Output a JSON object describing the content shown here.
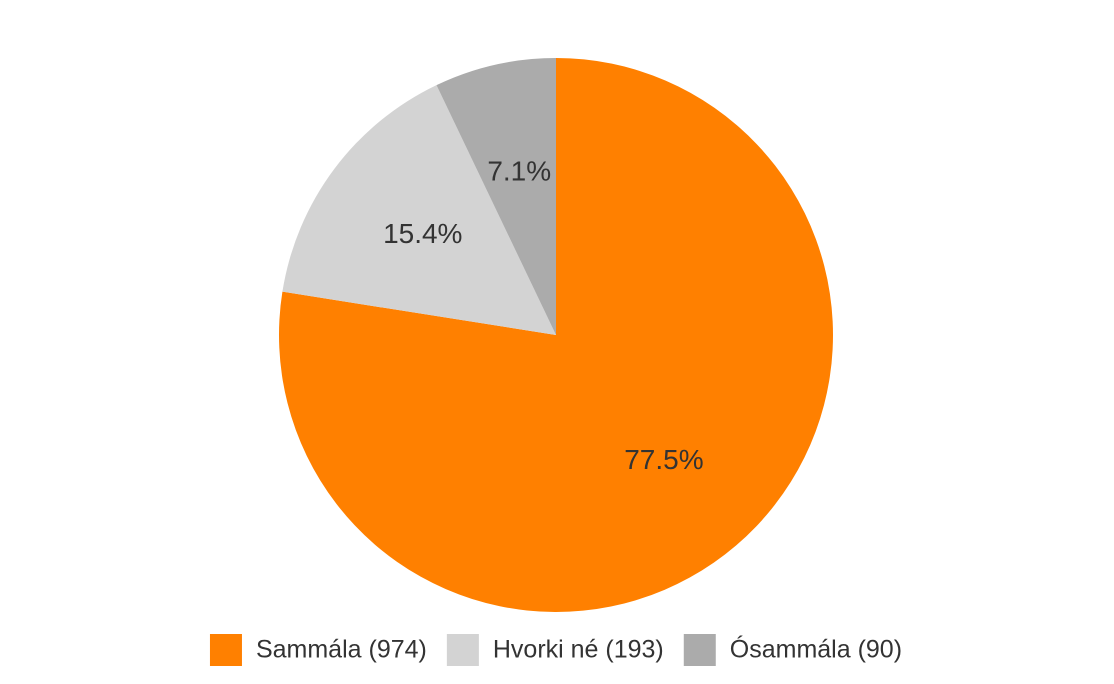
{
  "chart_data": {
    "type": "pie",
    "categories": [
      "Sammála (974)",
      "Hvorki né (193)",
      "Ósammála (90)"
    ],
    "values": [
      77.5,
      15.4,
      7.1
    ],
    "value_labels": [
      "77.5%",
      "15.4%",
      "7.1%"
    ],
    "colors": [
      "#ff8000",
      "#d3d3d3",
      "#ababab"
    ]
  }
}
